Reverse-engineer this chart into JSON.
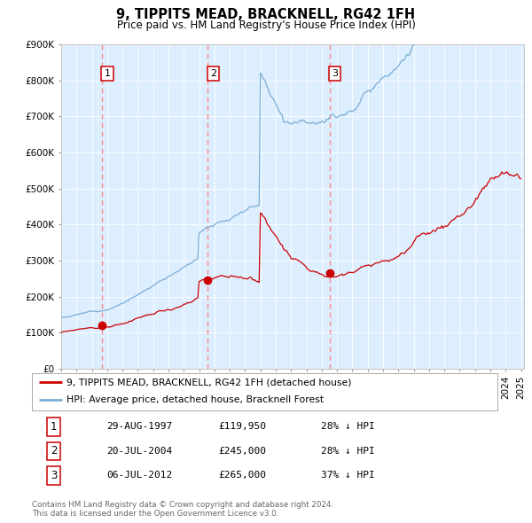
{
  "title": "9, TIPPITS MEAD, BRACKNELL, RG42 1FH",
  "subtitle": "Price paid vs. HM Land Registry's House Price Index (HPI)",
  "ylim": [
    0,
    900000
  ],
  "xlim_start": 1995.0,
  "xlim_end": 2025.2,
  "ytick_labels": [
    "£0",
    "£100K",
    "£200K",
    "£300K",
    "£400K",
    "£500K",
    "£600K",
    "£700K",
    "£800K",
    "£900K"
  ],
  "ytick_values": [
    0,
    100000,
    200000,
    300000,
    400000,
    500000,
    600000,
    700000,
    800000,
    900000
  ],
  "sale_dates": [
    1997.66,
    2004.55,
    2012.51
  ],
  "sale_prices": [
    119950,
    245000,
    265000
  ],
  "sale_labels": [
    "1",
    "2",
    "3"
  ],
  "hpi_color": "#7aadd4",
  "price_color": "#cc0000",
  "vline_color": "#ff8888",
  "plot_bg_color": "#ddeeff",
  "fig_bg_color": "#ffffff",
  "legend_line1": "9, TIPPITS MEAD, BRACKNELL, RG42 1FH (detached house)",
  "legend_line2": "HPI: Average price, detached house, Bracknell Forest",
  "table_entries": [
    {
      "num": "1",
      "date": "29-AUG-1997",
      "price": "£119,950",
      "hpi": "28% ↓ HPI"
    },
    {
      "num": "2",
      "date": "20-JUL-2004",
      "price": "£245,000",
      "hpi": "28% ↓ HPI"
    },
    {
      "num": "3",
      "date": "06-JUL-2012",
      "price": "£265,000",
      "hpi": "37% ↓ HPI"
    }
  ],
  "footnote": "Contains HM Land Registry data © Crown copyright and database right 2024.\nThis data is licensed under the Open Government Licence v3.0."
}
